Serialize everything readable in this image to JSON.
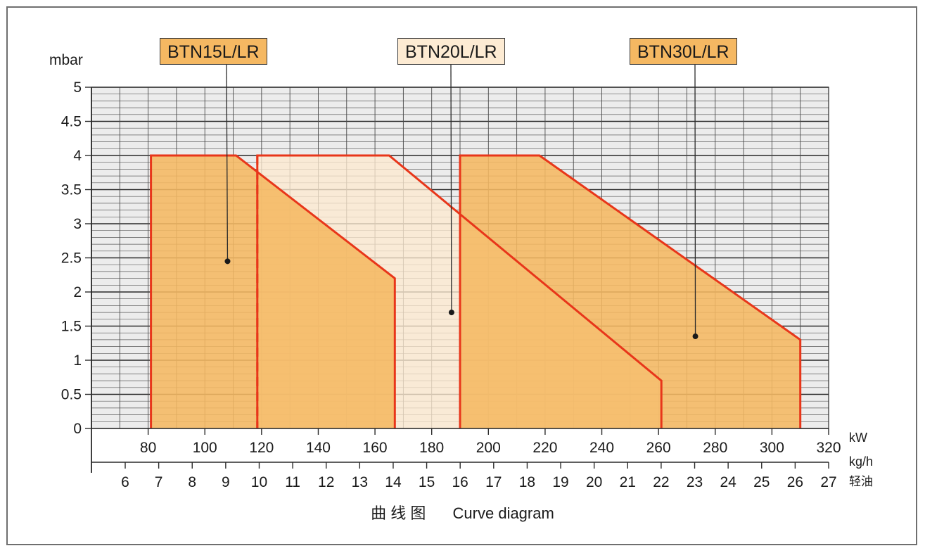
{
  "chart_data": {
    "type": "area",
    "caption_cn": "曲 线 图",
    "caption_en": "Curve diagram",
    "y_unit": "mbar",
    "y_range": [
      0,
      5
    ],
    "y_ticks": [
      "0",
      "0.5",
      "1",
      "1.5",
      "2",
      "2.5",
      "3",
      "3.5",
      "4",
      "4.5",
      "5"
    ],
    "x_unit": "kW",
    "x_range": [
      60,
      320
    ],
    "x_ticks": [
      "80",
      "100",
      "120",
      "140",
      "160",
      "180",
      "200",
      "220",
      "240",
      "260",
      "280",
      "300",
      "320"
    ],
    "x2_unit": "kg/h",
    "x2_unit_cn": "轻油",
    "x2_ticks": [
      "6",
      "7",
      "8",
      "9",
      "10",
      "11",
      "12",
      "13",
      "14",
      "15",
      "16",
      "17",
      "18",
      "19",
      "20",
      "21",
      "22",
      "23",
      "24",
      "25",
      "26",
      "27"
    ],
    "grid": true,
    "series": [
      {
        "name": "BTN15L/LR",
        "color": "#f5b862",
        "points": [
          [
            81,
            0
          ],
          [
            81,
            4
          ],
          [
            111,
            4
          ],
          [
            167,
            2.2
          ],
          [
            167,
            0
          ]
        ],
        "min_line_kw": 118.5,
        "marker": [
          108,
          2.45
        ]
      },
      {
        "name": "BTN20L/LR",
        "color": "#fde9cf",
        "points": [
          [
            118.5,
            0
          ],
          [
            118.5,
            4
          ],
          [
            165,
            4
          ],
          [
            261,
            0.7
          ],
          [
            261,
            0
          ]
        ],
        "min_line_kw": 190,
        "marker": [
          187,
          1.7
        ]
      },
      {
        "name": "BTN30L/LR",
        "color": "#f5b862",
        "points": [
          [
            190,
            0
          ],
          [
            190,
            4
          ],
          [
            218,
            4
          ],
          [
            310,
            1.3
          ],
          [
            310,
            0
          ]
        ],
        "marker": [
          273,
          1.35
        ]
      }
    ]
  }
}
